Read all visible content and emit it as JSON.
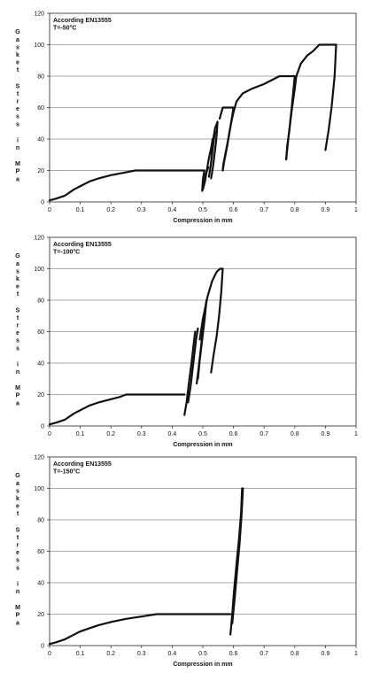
{
  "chart_data": [
    {
      "type": "line",
      "annotation_lines": [
        "According EN13555",
        "T=-50°C"
      ],
      "ylabel_words": [
        "Gasket",
        "Stress",
        "in",
        "MPa"
      ],
      "xlabel": "Compression in mm",
      "xlim": [
        0,
        1
      ],
      "ylim": [
        0,
        120
      ],
      "x_ticks": [
        0,
        0.1,
        0.2,
        0.3,
        0.4,
        0.5,
        0.6,
        0.7,
        0.8,
        0.9,
        1
      ],
      "x_tick_labels": [
        "0",
        "0.1",
        "0.2",
        "0.3",
        "0.4",
        "0.5",
        "0.6",
        "0.7",
        "0.8",
        "0.9",
        "1"
      ],
      "y_ticks": [
        0,
        20,
        40,
        60,
        80,
        100,
        120
      ],
      "y_tick_labels": [
        "0",
        "20",
        "40",
        "60",
        "80",
        "100",
        "120"
      ],
      "grid": "horizontal",
      "series": [
        {
          "x": [
            0,
            0.02,
            0.05,
            0.08,
            0.1,
            0.13,
            0.16,
            0.2,
            0.24,
            0.28,
            0.29,
            0.35,
            0.4,
            0.45,
            0.5,
            0.505
          ],
          "y": [
            1,
            2,
            4,
            8,
            10,
            13,
            15,
            17,
            18.5,
            20,
            20,
            20,
            20,
            20,
            20,
            20
          ]
        },
        {
          "x": [
            0.505,
            0.5,
            0.498,
            0.505,
            0.51,
            0.518
          ],
          "y": [
            20,
            14,
            7,
            12,
            18,
            22
          ]
        },
        {
          "x": [
            0.5,
            0.507,
            0.513,
            0.52,
            0.528,
            0.532
          ],
          "y": [
            8,
            13,
            20,
            28,
            35,
            40
          ]
        },
        {
          "x": [
            0.52,
            0.525,
            0.53,
            0.535,
            0.54
          ],
          "y": [
            16,
            22,
            30,
            38,
            45
          ]
        },
        {
          "x": [
            0.527,
            0.53,
            0.534,
            0.54,
            0.548
          ],
          "y": [
            25,
            32,
            40,
            47,
            51
          ]
        },
        {
          "x": [
            0.548,
            0.546,
            0.543,
            0.538,
            0.533,
            0.527
          ],
          "y": [
            51,
            45,
            38,
            30,
            22,
            15
          ]
        },
        {
          "x": [
            0.555,
            0.565,
            0.6
          ],
          "y": [
            53,
            60,
            60
          ]
        },
        {
          "x": [
            0.6,
            0.592,
            0.583,
            0.575,
            0.567,
            0.565
          ],
          "y": [
            60,
            50,
            40,
            32,
            24,
            20
          ]
        },
        {
          "x": [
            0.565,
            0.57,
            0.578,
            0.585,
            0.592,
            0.6
          ],
          "y": [
            20,
            26,
            34,
            42,
            50,
            57
          ]
        },
        {
          "x": [
            0.6,
            0.61,
            0.63,
            0.66,
            0.7,
            0.75,
            0.8
          ],
          "y": [
            57,
            64,
            69,
            72,
            75,
            80,
            80
          ]
        },
        {
          "x": [
            0.8,
            0.79,
            0.782,
            0.775,
            0.772
          ],
          "y": [
            80,
            60,
            45,
            35,
            27
          ]
        },
        {
          "x": [
            0.772,
            0.78,
            0.79,
            0.8,
            0.805
          ],
          "y": [
            27,
            42,
            58,
            72,
            80
          ]
        },
        {
          "x": [
            0.805,
            0.82,
            0.84,
            0.86,
            0.88,
            0.9,
            0.935
          ],
          "y": [
            80,
            88,
            93,
            96,
            100,
            100,
            100
          ]
        },
        {
          "x": [
            0.935,
            0.93,
            0.92,
            0.91,
            0.9
          ],
          "y": [
            100,
            80,
            60,
            45,
            33
          ]
        }
      ]
    },
    {
      "type": "line",
      "annotation_lines": [
        "According EN13555",
        "T=-100°C"
      ],
      "ylabel_words": [
        "Gasket",
        "Stress",
        "in",
        "MPa"
      ],
      "xlabel": "Compression in mm",
      "xlim": [
        0,
        1
      ],
      "ylim": [
        0,
        120
      ],
      "x_ticks": [
        0,
        0.1,
        0.2,
        0.3,
        0.4,
        0.5,
        0.6,
        0.7,
        0.8,
        0.9,
        1
      ],
      "x_tick_labels": [
        "0",
        "0.1",
        "0.2",
        "0.3",
        "0.4",
        "0.5",
        "0.6",
        "0.7",
        "0.8",
        "0.9",
        "1"
      ],
      "y_ticks": [
        0,
        20,
        40,
        60,
        80,
        100,
        120
      ],
      "y_tick_labels": [
        "0",
        "20",
        "40",
        "60",
        "80",
        "100",
        "120"
      ],
      "grid": "horizontal",
      "series": [
        {
          "x": [
            0,
            0.02,
            0.05,
            0.08,
            0.1,
            0.13,
            0.16,
            0.2,
            0.23,
            0.25,
            0.3,
            0.35,
            0.4,
            0.44
          ],
          "y": [
            1,
            2,
            4,
            8,
            10,
            13,
            15,
            17,
            18.5,
            20,
            20,
            20,
            20,
            20
          ]
        },
        {
          "x": [
            0.44,
            0.447,
            0.455,
            0.463,
            0.47,
            0.475
          ],
          "y": [
            7,
            15,
            28,
            40,
            52,
            60
          ]
        },
        {
          "x": [
            0.452,
            0.46,
            0.466,
            0.472,
            0.478,
            0.484
          ],
          "y": [
            15,
            25,
            35,
            45,
            55,
            62
          ]
        },
        {
          "x": [
            0.48,
            0.487,
            0.494,
            0.5,
            0.506,
            0.512
          ],
          "y": [
            27,
            38,
            50,
            62,
            72,
            80
          ]
        },
        {
          "x": [
            0.512,
            0.506,
            0.498,
            0.49,
            0.484
          ],
          "y": [
            80,
            68,
            55,
            42,
            30
          ]
        },
        {
          "x": [
            0.49,
            0.5,
            0.515,
            0.53,
            0.545,
            0.556,
            0.565
          ],
          "y": [
            55,
            68,
            82,
            92,
            98,
            100,
            100
          ]
        },
        {
          "x": [
            0.565,
            0.56,
            0.553,
            0.545,
            0.535,
            0.527
          ],
          "y": [
            100,
            85,
            70,
            57,
            45,
            34
          ]
        }
      ]
    },
    {
      "type": "line",
      "annotation_lines": [
        "According EN13555",
        "T=-150°C"
      ],
      "ylabel_words": [
        "Gasket",
        "Stress",
        "in",
        "MPa"
      ],
      "xlabel": "Compression in mm",
      "xlim": [
        0,
        1
      ],
      "ylim": [
        0,
        120
      ],
      "x_ticks": [
        0,
        0.1,
        0.2,
        0.3,
        0.4,
        0.5,
        0.6,
        0.7,
        0.8,
        0.9,
        1
      ],
      "x_tick_labels": [
        "0",
        "0.1",
        "0.2",
        "0.3",
        "0.4",
        "0.5",
        "0.6",
        "0.7",
        "0.8",
        "0.9",
        "1"
      ],
      "y_ticks": [
        0,
        20,
        40,
        60,
        80,
        100,
        120
      ],
      "y_tick_labels": [
        "0",
        "20",
        "40",
        "60",
        "80",
        "100",
        "120"
      ],
      "grid": "horizontal",
      "series": [
        {
          "x": [
            0,
            0.02,
            0.05,
            0.08,
            0.1,
            0.13,
            0.16,
            0.2,
            0.25,
            0.3,
            0.35,
            0.4,
            0.45,
            0.5,
            0.55,
            0.59
          ],
          "y": [
            1,
            2,
            4,
            7,
            9,
            11,
            13,
            15,
            17,
            18.5,
            20,
            20,
            20,
            20,
            20,
            20
          ]
        },
        {
          "x": [
            0.59,
            0.596,
            0.602,
            0.61,
            0.618,
            0.625,
            0.628
          ],
          "y": [
            7,
            20,
            35,
            52,
            68,
            85,
            100
          ]
        },
        {
          "x": [
            0.596,
            0.604,
            0.612,
            0.62,
            0.626,
            0.631
          ],
          "y": [
            14,
            30,
            48,
            65,
            82,
            100
          ]
        }
      ]
    }
  ]
}
